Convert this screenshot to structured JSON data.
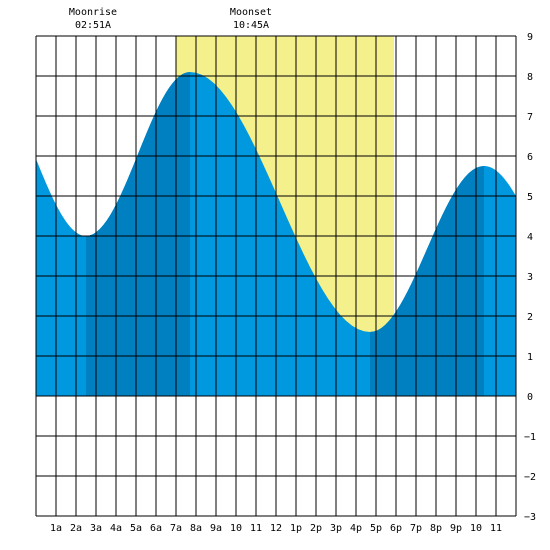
{
  "chart_data": {
    "type": "area",
    "title": "",
    "xlabel": "",
    "ylabel": "",
    "xlim": [
      0,
      24
    ],
    "ylim": [
      -3,
      9
    ],
    "y_ticks": [
      9,
      8,
      7,
      6,
      5,
      4,
      3,
      2,
      1,
      0,
      -1,
      -2,
      -3
    ],
    "x_tick_hours": [
      1,
      2,
      3,
      4,
      5,
      6,
      7,
      8,
      9,
      10,
      11,
      12,
      13,
      14,
      15,
      16,
      17,
      18,
      19,
      20,
      21,
      22,
      23
    ],
    "x_tick_labels": [
      "1a",
      "2a",
      "3a",
      "4a",
      "5a",
      "6a",
      "7a",
      "8a",
      "9a",
      "10",
      "11",
      "12",
      "1p",
      "2p",
      "3p",
      "4p",
      "5p",
      "6p",
      "7p",
      "8p",
      "9p",
      "10",
      "11"
    ],
    "grid": true,
    "daylight": {
      "start": 7.0,
      "end": 17.9,
      "color": "#f4f08c"
    },
    "events": [
      {
        "name": "Moonrise",
        "time": "02:51A",
        "x": 2.85
      },
      {
        "name": "Moonset",
        "time": "10:45A",
        "x": 10.75
      }
    ],
    "extremes": [
      {
        "type": "low",
        "x": 2.5,
        "y": 4.0
      },
      {
        "type": "high",
        "x": 7.7,
        "y": 8.1
      },
      {
        "type": "low",
        "x": 16.7,
        "y": 1.6
      },
      {
        "type": "high",
        "x": 22.4,
        "y": 5.75
      }
    ],
    "start_level": 4.6,
    "end_level": 5.4,
    "colors": {
      "water": "#0099e0",
      "water_dark": "#0080c0",
      "grid": "#000000",
      "background": "#ffffff"
    }
  }
}
